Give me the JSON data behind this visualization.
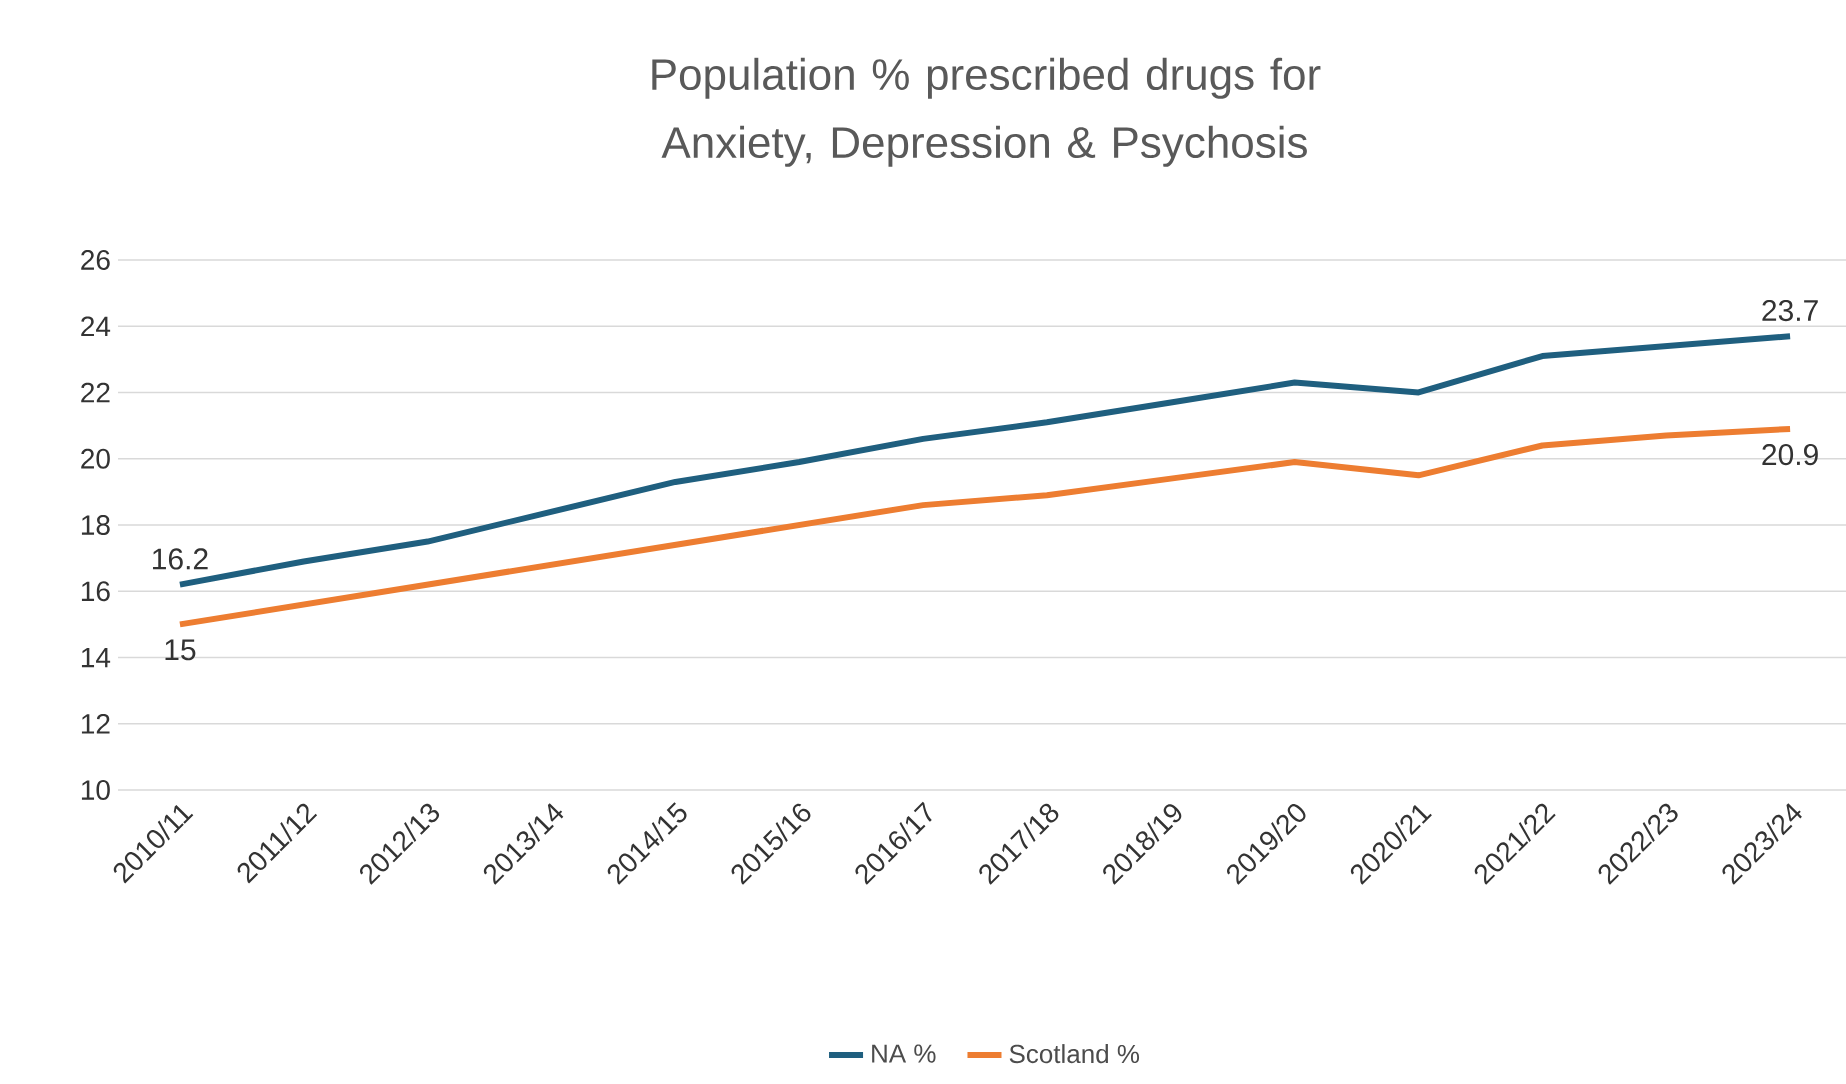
{
  "chart_data": {
    "type": "line",
    "title": "Population % prescribed drugs for Anxiety, Depression & Psychosis",
    "categories": [
      "2010/11",
      "2011/12",
      "2012/13",
      "2013/14",
      "2014/15",
      "2015/16",
      "2016/17",
      "2017/18",
      "2018/19",
      "2019/20",
      "2020/21",
      "2021/22",
      "2022/23",
      "2023/24"
    ],
    "series": [
      {
        "name": "NA %",
        "color": "#1f5f7f",
        "values": [
          16.2,
          16.9,
          17.5,
          18.4,
          19.3,
          19.9,
          20.6,
          21.1,
          21.7,
          22.3,
          22.0,
          23.1,
          23.4,
          23.7
        ],
        "value_labels": [
          "16.2",
          null,
          null,
          null,
          null,
          null,
          null,
          null,
          null,
          null,
          null,
          null,
          null,
          "23.7"
        ]
      },
      {
        "name": "Scotland %",
        "color": "#ed7d31",
        "values": [
          15.0,
          15.6,
          16.2,
          16.8,
          17.4,
          18.0,
          18.6,
          18.9,
          19.4,
          19.9,
          19.5,
          20.4,
          20.7,
          20.9
        ],
        "value_labels": [
          "15",
          null,
          null,
          null,
          null,
          null,
          null,
          null,
          null,
          null,
          null,
          null,
          null,
          "20.9"
        ]
      }
    ],
    "ylim": [
      10,
      26
    ],
    "yticks": [
      10,
      12,
      14,
      16,
      18,
      20,
      22,
      24,
      26
    ],
    "grid": "y",
    "legend": "bottom",
    "marker": "none",
    "line_style": "solid"
  }
}
